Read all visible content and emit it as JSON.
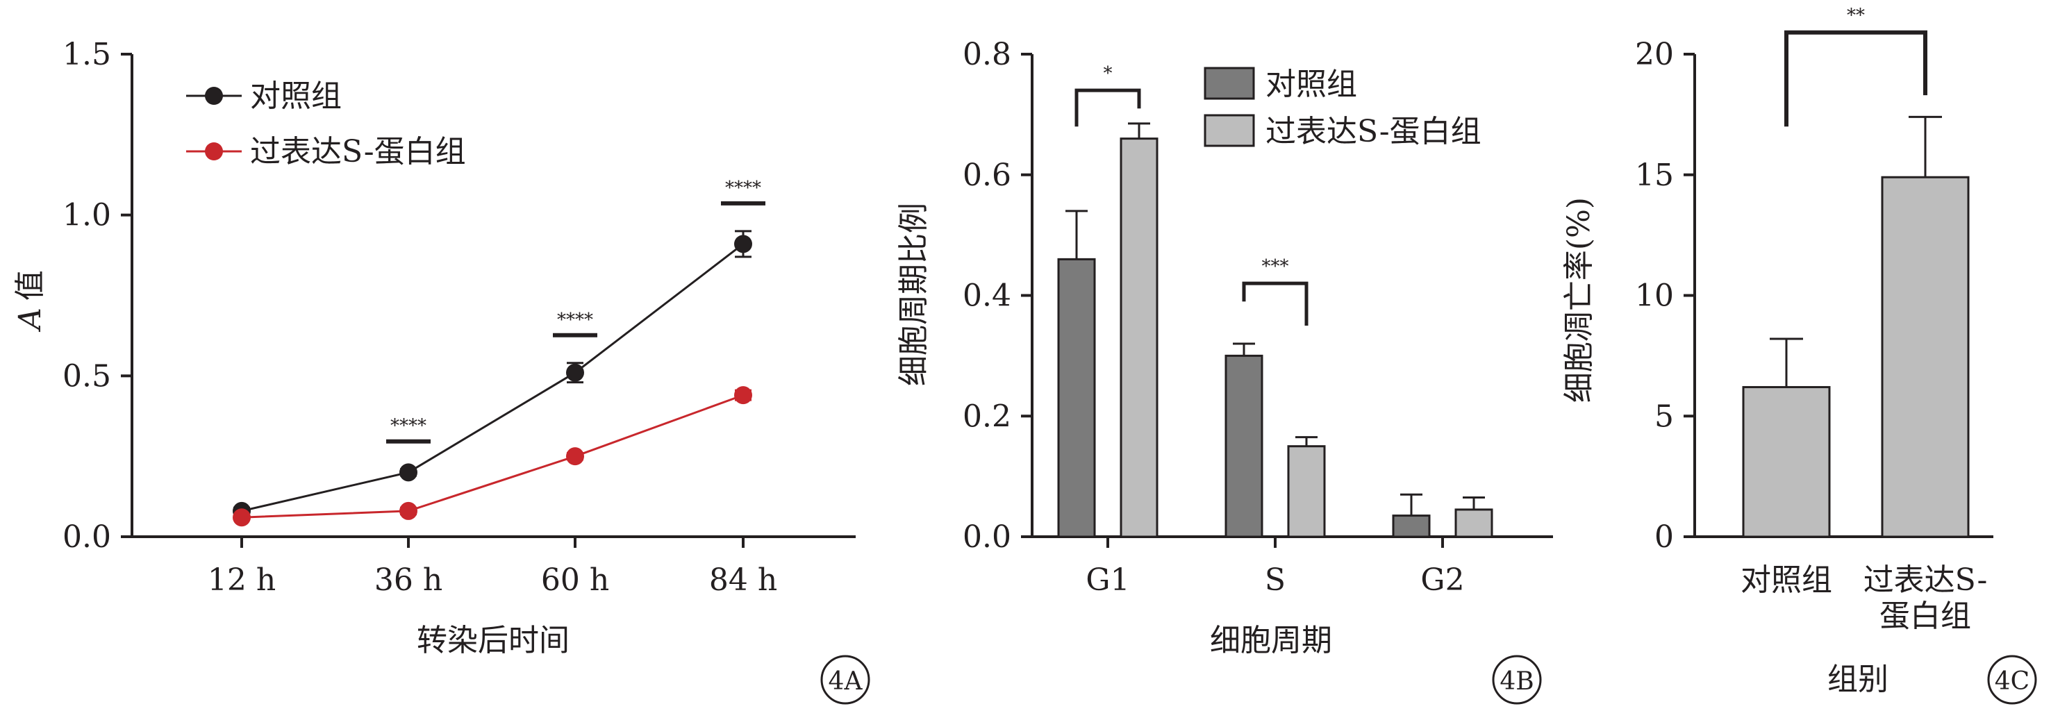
{
  "chart_data": [
    {
      "type": "line",
      "panel_label": "4A",
      "xlabel": "转染后时间",
      "ylabel_italic": "A",
      "ylabel": "值",
      "categories": [
        "12 h",
        "36 h",
        "60 h",
        "84 h"
      ],
      "ylim": [
        0,
        1.5
      ],
      "yticks": [
        "0.0",
        "0.5",
        "1.0",
        "1.5"
      ],
      "series": [
        {
          "name": "对照组",
          "color": "#231f20",
          "values": [
            0.08,
            0.2,
            0.51,
            0.91
          ],
          "errors": [
            0.01,
            0.01,
            0.03,
            0.04
          ]
        },
        {
          "name": "过表达S-蛋白组",
          "color": "#c8272c",
          "values": [
            0.06,
            0.08,
            0.25,
            0.44
          ],
          "errors": [
            0.005,
            0.01,
            0.01,
            0.015
          ]
        }
      ],
      "significance": [
        "",
        "****",
        "****",
        "****"
      ]
    },
    {
      "type": "bar",
      "panel_label": "4B",
      "xlabel": "细胞周期",
      "ylabel": "细胞周期比例",
      "categories": [
        "G1",
        "S",
        "G2"
      ],
      "ylim": [
        0,
        0.8
      ],
      "yticks": [
        "0.0",
        "0.2",
        "0.4",
        "0.6",
        "0.8"
      ],
      "series": [
        {
          "name": "对照组",
          "color": "#7b7b7b",
          "values": [
            0.46,
            0.3,
            0.035
          ],
          "errors": [
            0.08,
            0.02,
            0.035
          ]
        },
        {
          "name": "过表达S-蛋白组",
          "color": "#bdbdbd",
          "values": [
            0.66,
            0.15,
            0.045
          ],
          "errors": [
            0.025,
            0.015,
            0.02
          ]
        }
      ],
      "significance": [
        "*",
        "***",
        ""
      ]
    },
    {
      "type": "bar",
      "panel_label": "4C",
      "xlabel": "组别",
      "ylabel": "细胞凋亡率(%)",
      "categories": [
        [
          "对照组"
        ],
        [
          "过表达S-",
          "蛋白组"
        ]
      ],
      "ylim": [
        0,
        20
      ],
      "yticks": [
        "0",
        "5",
        "10",
        "15",
        "20"
      ],
      "color": "#bdbdbd",
      "values": [
        6.2,
        14.9
      ],
      "errors": [
        2.0,
        2.5
      ],
      "significance": "**"
    }
  ]
}
